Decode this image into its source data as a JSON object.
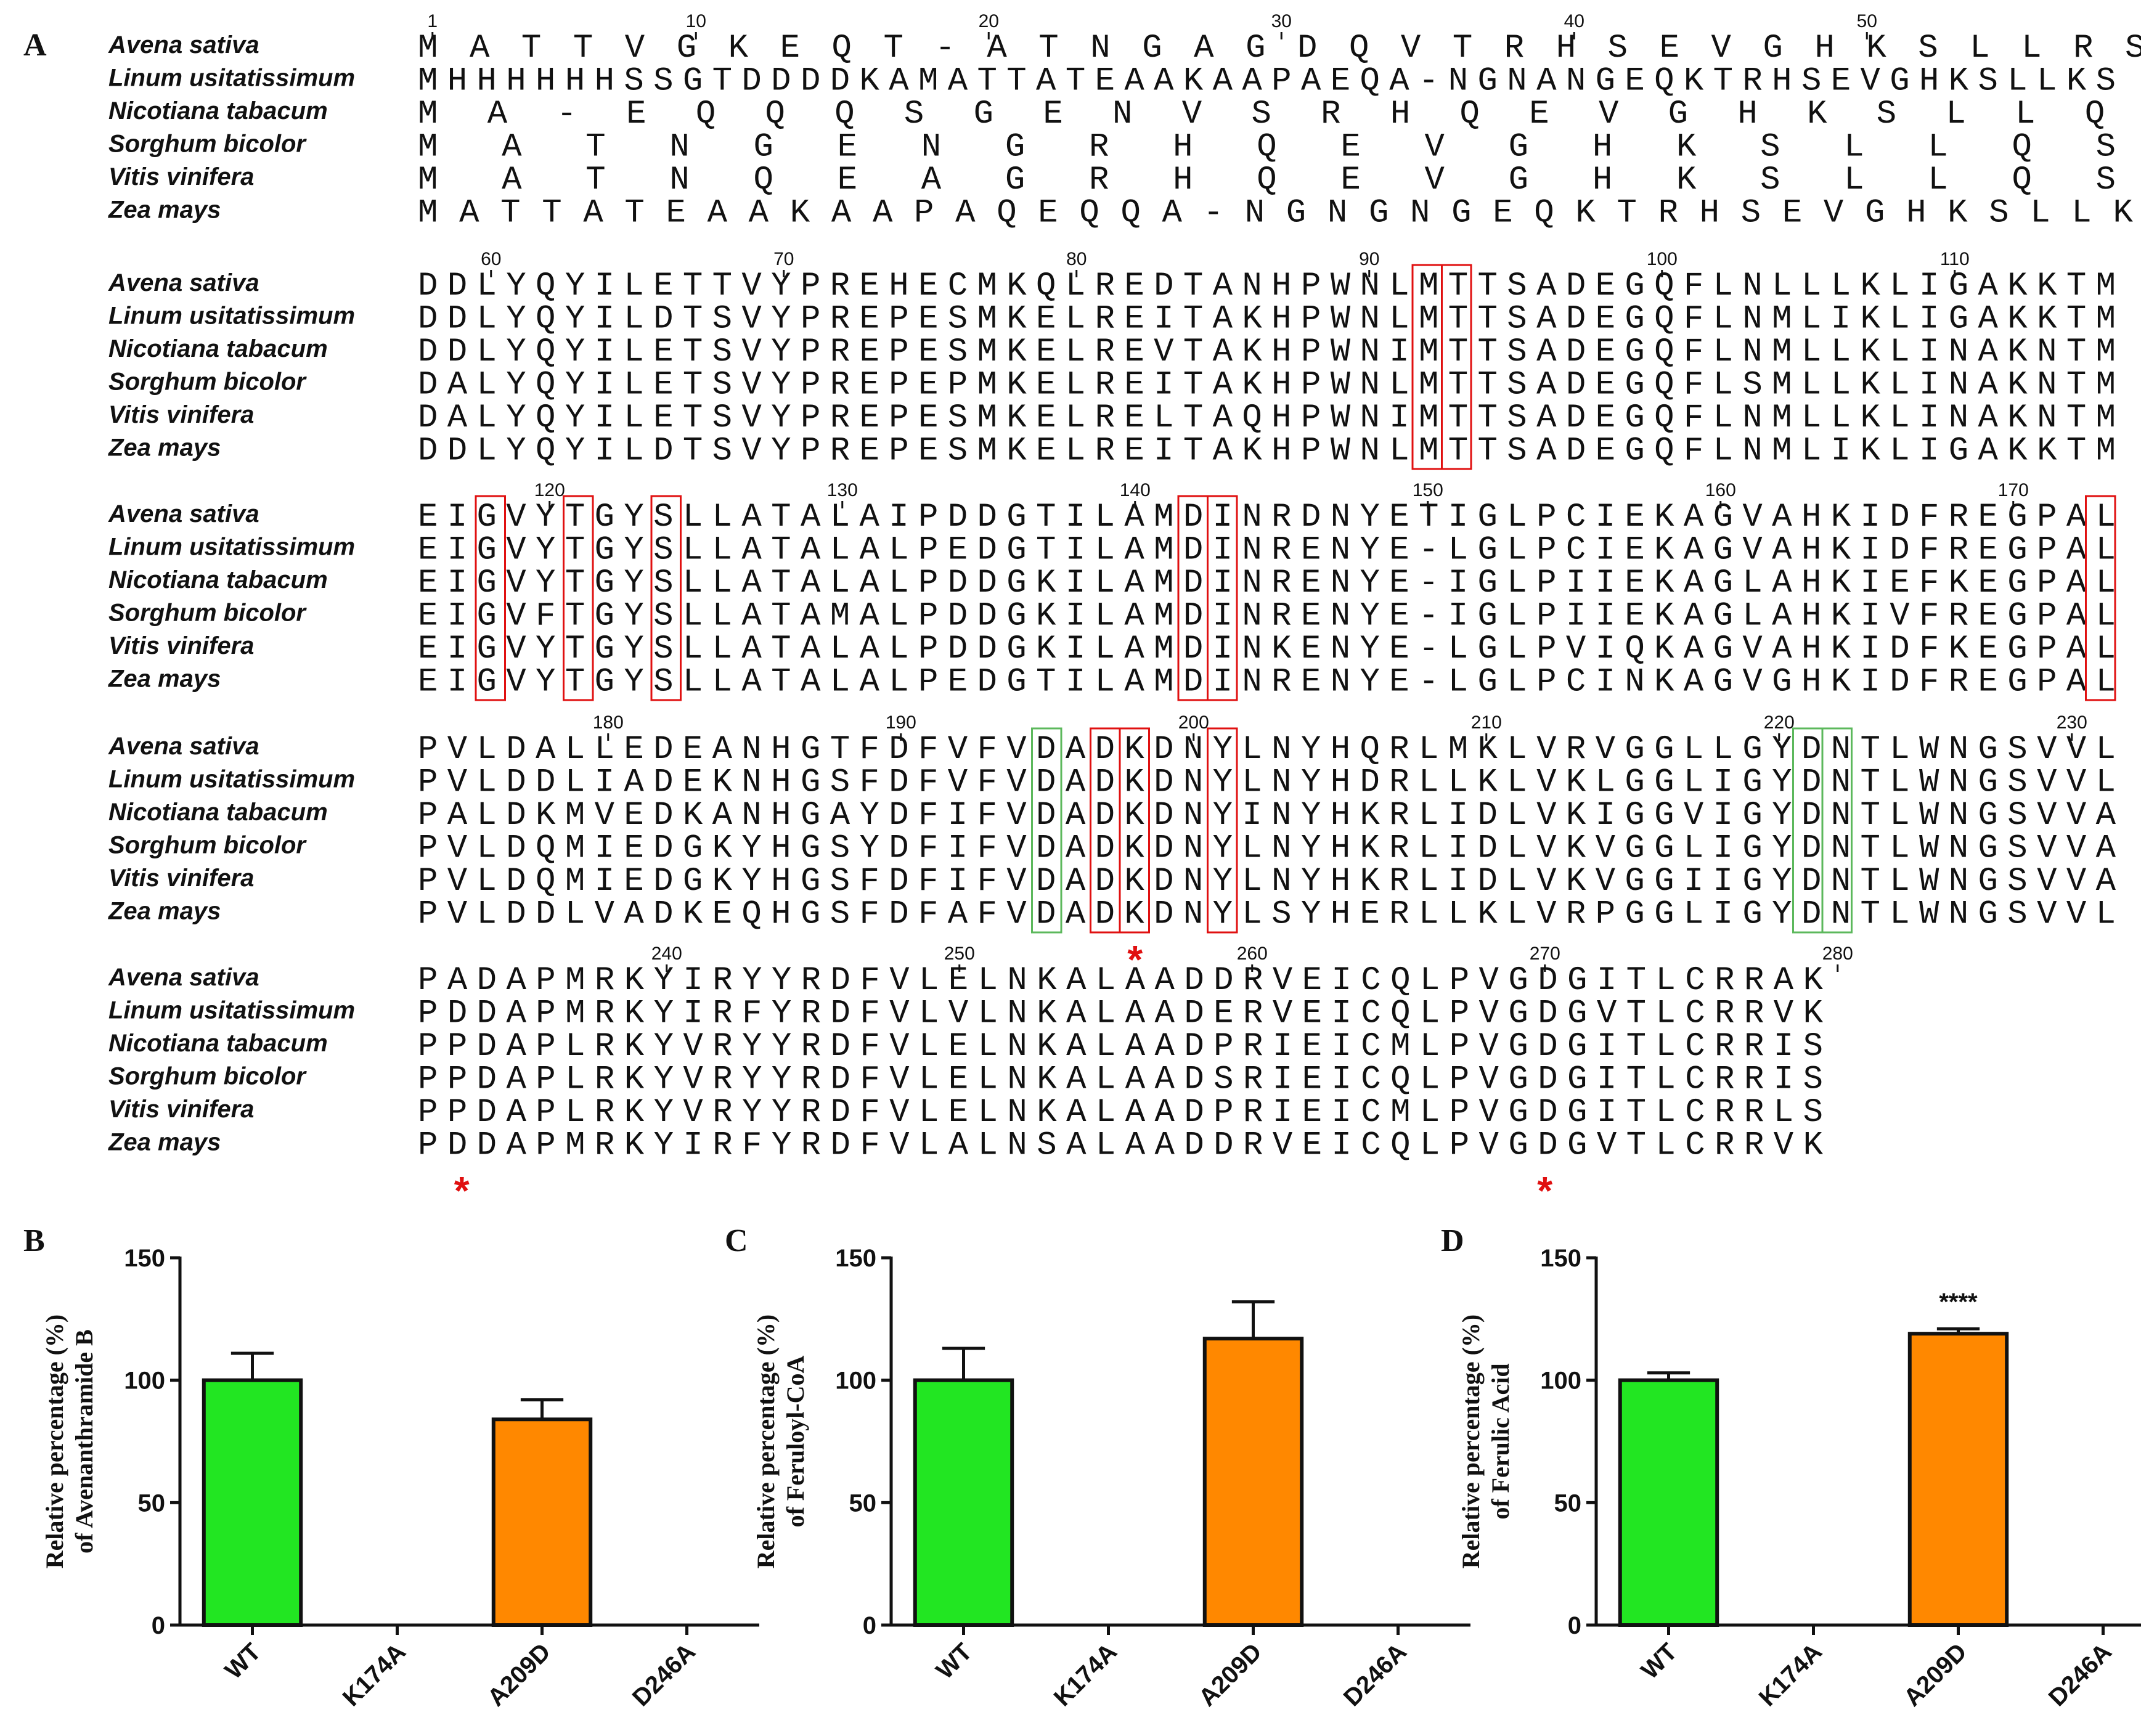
{
  "panel_a": {
    "label": "A",
    "species": [
      "Avena sativa",
      "Linum usitatissimum",
      "Nicotiana tabacum",
      "Sorghum bicolor",
      "Vitis vinifera",
      "Zea mays"
    ],
    "blocks": [
      {
        "ruler": [
          "1",
          "10",
          "20",
          "30",
          "40",
          "50"
        ],
        "rows": [
          "                         MATTVGKEQT-ATNGAGDQVTRHSEVGHKSLLRS",
          "MHHHHHHSSGTDDDDKAMATTATEAAKAAPAEQA-NGNANGEQKTRHSEVGHKSLLKS",
          "                                  MA-EQQQSGENVSRHQEVGHKSLLQS",
          "                                     MATNGENGRHQEVGHKSLLQS",
          "                                     MATNQEAGRHQEVGHKSLLQS",
          "                 MATTATEAAKAAPAQEQQA-NGNGNGEQKTRHSEVGHKSLLKS"
        ]
      },
      {
        "ruler": [
          "60",
          "70",
          "80",
          "90",
          "100",
          "110"
        ],
        "rows": [
          "DDLYQYILETTVYPREHECMKQLREDTANHPWNLMTTSADEGQFLNLLLKLIGAKKTM",
          "DDLYQYILDTSVYPREPESMKELREITAKHPWNLMTTSADEGQFLNMLIKLIGAKKTM",
          "DDLYQYILETSVYPREPESMKELREVTAKHPWNIMTTSADEGQFLNMLLKLINAKNTM",
          "DALYQYILETSVYPREPEPMKELREITAKHPWNLMTTSADEGQFLSMLLKLINAKNTM",
          "DALYQYILETSVYPREPESMKELRELTAQHPWNIMTTSADEGQFLNMLLKLINAKNTM",
          "DDLYQYILDTSVYPREPESMKELREITAKHPWNLMTTSADEGQFLNMLIKLIGAKKTM"
        ]
      },
      {
        "ruler": [
          "120",
          "130",
          "140",
          "150",
          "160",
          "170"
        ],
        "rows": [
          "EIGVYTGYSLLATALAIPDDGTILAMDINRDNYETIGLPCIEKAGVAHKIDFREGPAL",
          "EIGVYTGYSLLATALALPEDGTILAMDINRENYE-LGLPCIEKAGVAHKIDFREGPAL",
          "EIGVYTGYSLLATALALPDDGKILAMDINRENYE-IGLPIIEKAGLAHKIEFKEGPAL",
          "EIGVFTGYSLLATAMALPDDGKILAMDINRENYE-IGLPIIEKAGLAHKIVFREGPAL",
          "EIGVYTGYSLLATALALPDDGKILAMDINKENYE-LGLPVIQKAGVAHKIDFKEGPAL",
          "EIGVYTGYSLLATALALPEDGTILAMDINRENYE-LGLPCINKAGVGHKIDFREGPAL"
        ]
      },
      {
        "ruler": [
          "180",
          "190",
          "200",
          "210",
          "220",
          "230"
        ],
        "rows": [
          "PVLDALLEDEANHGTFDFVFVDADKDNYLNYHQRLMKLVRVGGLLGYDNTLWNGSVVL",
          "PVLDDLIADEKNHGSFDFVFVDADKDNYLNYHDRLLKLVKLGGLIGYDNTLWNGSVVL",
          "PALDKMVEDKANHGAYDFIFVDADKDNYINYHKRLIDLVKIGGVIGYDNTLWNGSVVA",
          "PVLDQMIEDGKYHGSYDFIFVDADKDNYLNYHKRLIDLVKVGGLIGYDNTLWNGSVVA",
          "PVLDQMIEDGKYHGSFDFIFVDADKDNYLNYHKRLIDLVKVGGIIGYDNTLWNGSVVA",
          "PVLDDLVADKEQHGSFDFAFVDADKDNYLSYHERLLKLVRPGGLIGYDNTLWNGSVVL"
        ]
      },
      {
        "ruler": [
          "240",
          "250",
          "260",
          "270",
          "280"
        ],
        "rows": [
          "PADAPMRKYIRYYRDFVLELNKALAADDRVEICQLPVGDGITLCRRAK",
          "PDDAPMRKYIRFYRDFVLVLNKALAADERVEICQLPVGDGVTLCRRVK",
          "PPDAPLRKYVRYYRDFVLELNKALAADPRIEICMLPVGDGITLCRRIS",
          "PPDAPLRKYVRYYRDFVLELNKALAADSRIEICQLPVGDGITLCRRIS",
          "PPDAPLRKYVRYYRDFVLELNKALAADPRIEICMLPVGDGITLCRRLS",
          "PDDAPMRKYIRFYRDFVLALNSALAADDRVEICQLPVGDGVTLCRRVK"
        ]
      }
    ],
    "mark_symbol": "*",
    "colors": {
      "conserved_box": "#e01010",
      "green_box": "#5cb85c",
      "marker": "#e01010"
    }
  },
  "chart_data": [
    {
      "panel": "B",
      "type": "bar",
      "categories": [
        "WT",
        "K174A",
        "A209D",
        "D246A"
      ],
      "values": [
        100,
        0,
        84,
        0
      ],
      "errors": [
        11,
        0,
        8,
        0
      ],
      "ylabel_line1": "Relative percentage (%)",
      "ylabel_line2": "of Avenanthramide B",
      "ylim": [
        0,
        150
      ],
      "yticks": [
        "0",
        "50",
        "100",
        "150"
      ],
      "annotation": "",
      "colors": [
        "#22e622",
        "#22e622",
        "#ff8800",
        "#ff8800"
      ]
    },
    {
      "panel": "C",
      "type": "bar",
      "categories": [
        "WT",
        "K174A",
        "A209D",
        "D246A"
      ],
      "values": [
        100,
        0,
        117,
        0
      ],
      "errors": [
        13,
        0,
        15,
        0
      ],
      "ylabel_line1": "Relative percentage (%)",
      "ylabel_line2": "of Feruloyl-CoA",
      "ylim": [
        0,
        150
      ],
      "yticks": [
        "0",
        "50",
        "100",
        "150"
      ],
      "annotation": "",
      "colors": [
        "#22e622",
        "#22e622",
        "#ff8800",
        "#ff8800"
      ]
    },
    {
      "panel": "D",
      "type": "bar",
      "categories": [
        "WT",
        "K174A",
        "A209D",
        "D246A"
      ],
      "values": [
        100,
        0,
        119,
        0
      ],
      "errors": [
        3,
        0,
        2,
        0
      ],
      "ylabel_line1": "Relative percentage (%)",
      "ylabel_line2": "of Ferulic Acid",
      "ylim": [
        0,
        150
      ],
      "yticks": [
        "0",
        "50",
        "100",
        "150"
      ],
      "annotation": "****",
      "colors": [
        "#22e622",
        "#22e622",
        "#ff8800",
        "#ff8800"
      ]
    }
  ]
}
